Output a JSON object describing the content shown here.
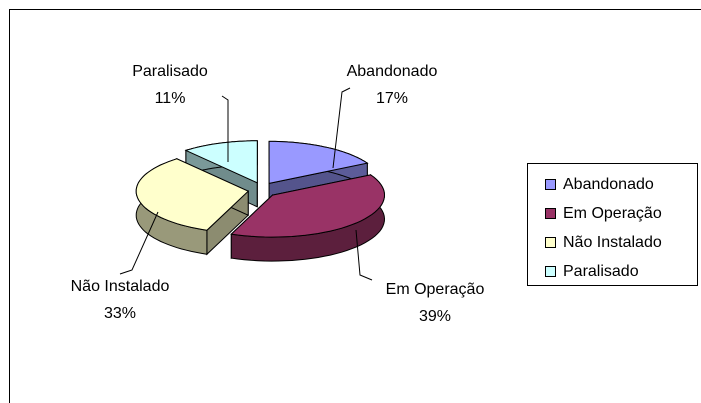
{
  "chart_data": {
    "type": "pie3d",
    "categories": [
      "Abandonado",
      "Em Operação",
      "Não Instalado",
      "Paralisado"
    ],
    "values": [
      17,
      39,
      33,
      11
    ],
    "value_labels": [
      "17%",
      "39%",
      "33%",
      "11%"
    ],
    "colors": [
      "#9999ff",
      "#993366",
      "#ffffcc",
      "#ccffff"
    ],
    "legend": "right"
  }
}
